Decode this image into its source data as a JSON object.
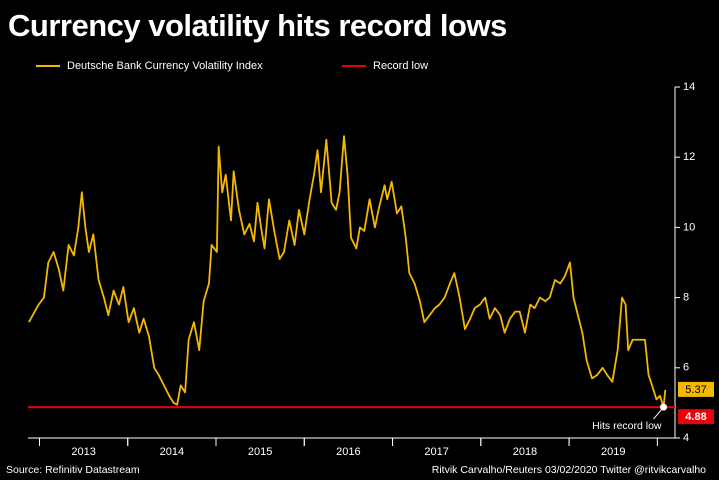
{
  "chart_data": {
    "type": "line",
    "title": "Currency volatility hits record lows",
    "source": "Source: Refinitiv Datastream",
    "credit": "Ritvik Carvalho/Reuters 03/02/2020 Twitter @ritvikcarvalho",
    "annotation": "Hits record low",
    "x": [
      2012.88,
      2012.99,
      2013.05,
      2013.1,
      2013.16,
      2013.22,
      2013.27,
      2013.33,
      2013.39,
      2013.44,
      2013.48,
      2013.52,
      2013.56,
      2013.61,
      2013.67,
      2013.73,
      2013.78,
      2013.84,
      2013.9,
      2013.95,
      2014.01,
      2014.07,
      2014.13,
      2014.18,
      2014.24,
      2014.3,
      2014.35,
      2014.41,
      2014.47,
      2014.52,
      2014.56,
      2014.6,
      2014.65,
      2014.69,
      2014.75,
      2014.81,
      2014.86,
      2014.92,
      2014.95,
      2015.01,
      2015.03,
      2015.07,
      2015.11,
      2015.17,
      2015.2,
      2015.26,
      2015.32,
      2015.38,
      2015.43,
      2015.47,
      2015.51,
      2015.55,
      2015.6,
      2015.66,
      2015.72,
      2015.77,
      2015.83,
      2015.89,
      2015.94,
      2016.0,
      2016.06,
      2016.11,
      2016.15,
      2016.19,
      2016.25,
      2016.31,
      2016.36,
      2016.4,
      2016.45,
      2016.49,
      2016.53,
      2016.59,
      2016.63,
      2016.68,
      2016.74,
      2016.8,
      2016.85,
      2016.91,
      2016.94,
      2016.99,
      2017.05,
      2017.1,
      2017.15,
      2017.19,
      2017.25,
      2017.31,
      2017.36,
      2017.42,
      2017.48,
      2017.53,
      2017.59,
      2017.65,
      2017.7,
      2017.76,
      2017.82,
      2017.88,
      2017.93,
      2017.99,
      2018.05,
      2018.1,
      2018.16,
      2018.22,
      2018.27,
      2018.33,
      2018.39,
      2018.44,
      2018.5,
      2018.56,
      2018.61,
      2018.67,
      2018.73,
      2018.78,
      2018.84,
      2018.9,
      2018.95,
      2019.01,
      2019.05,
      2019.09,
      2019.15,
      2019.2,
      2019.26,
      2019.32,
      2019.38,
      2019.43,
      2019.49,
      2019.55,
      2019.6,
      2019.64,
      2019.67,
      2019.72,
      2019.76,
      2019.81,
      2019.86,
      2019.9,
      2019.94,
      2019.99,
      2020.03,
      2020.07,
      2020.09
    ],
    "series": [
      {
        "name": "Deutsche Bank Currency Volatility Index",
        "color": "#f5b800",
        "values": [
          7.3,
          7.8,
          8.0,
          9.0,
          9.3,
          8.8,
          8.2,
          9.5,
          9.2,
          10.0,
          11.0,
          10.0,
          9.3,
          9.8,
          8.5,
          8.0,
          7.5,
          8.2,
          7.8,
          8.3,
          7.3,
          7.7,
          7.0,
          7.4,
          6.9,
          6.0,
          5.8,
          5.5,
          5.2,
          5.0,
          4.95,
          5.5,
          5.3,
          6.8,
          7.3,
          6.5,
          7.9,
          8.4,
          9.5,
          9.3,
          12.3,
          11.0,
          11.5,
          10.2,
          11.6,
          10.5,
          9.8,
          10.1,
          9.6,
          10.7,
          10.0,
          9.4,
          10.8,
          9.9,
          9.1,
          9.3,
          10.2,
          9.5,
          10.5,
          9.8,
          10.8,
          11.5,
          12.2,
          11.0,
          12.5,
          10.7,
          10.5,
          11.0,
          12.6,
          11.5,
          9.7,
          9.4,
          10.0,
          9.9,
          10.8,
          10.0,
          10.6,
          11.2,
          10.8,
          11.3,
          10.4,
          10.6,
          9.7,
          8.7,
          8.4,
          7.9,
          7.3,
          7.5,
          7.7,
          7.8,
          8.0,
          8.4,
          8.7,
          8.0,
          7.1,
          7.4,
          7.7,
          7.8,
          8.0,
          7.4,
          7.7,
          7.5,
          7.0,
          7.4,
          7.6,
          7.6,
          7.0,
          7.8,
          7.7,
          8.0,
          7.9,
          8.0,
          8.5,
          8.4,
          8.6,
          9.0,
          8.0,
          7.6,
          7.0,
          6.2,
          5.7,
          5.8,
          6.0,
          5.8,
          5.6,
          6.5,
          8.0,
          7.8,
          6.5,
          6.8,
          6.8,
          6.8,
          6.8,
          5.8,
          5.5,
          5.1,
          5.2,
          4.88,
          5.37
        ]
      }
    ],
    "reference_line": {
      "name": "Record low",
      "value": 4.88,
      "color": "#e8000b"
    },
    "xlim": [
      2012.87,
      2020.2
    ],
    "xticks": [
      {
        "value": 2013.5,
        "label": "2013"
      },
      {
        "value": 2014.5,
        "label": "2014"
      },
      {
        "value": 2015.5,
        "label": "2015"
      },
      {
        "value": 2016.5,
        "label": "2016"
      },
      {
        "value": 2017.5,
        "label": "2017"
      },
      {
        "value": 2018.5,
        "label": "2018"
      },
      {
        "value": 2019.5,
        "label": "2019"
      }
    ],
    "ylim": [
      4,
      14
    ],
    "yticks": [
      4,
      6,
      8,
      10,
      12,
      14
    ],
    "y_axis_side": "right"
  }
}
